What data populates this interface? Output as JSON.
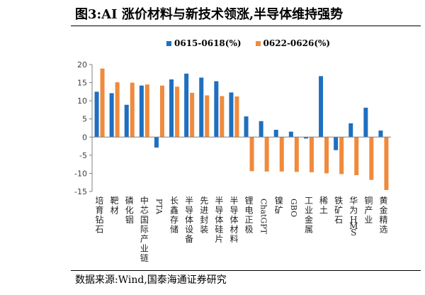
{
  "figure": {
    "title": "图3:AI 涨价材料与新技术领涨,半导体维持强势",
    "source": "数据来源:Wind,国泰海通证券研究"
  },
  "chart_data": {
    "type": "bar",
    "categories": [
      "培育钻石",
      "靶材",
      "磷化铟",
      "中芯国际产业链",
      "PTA",
      "长鑫存储",
      "半导体设备",
      "先进封装",
      "半导体硅片",
      "半导体材料",
      "锂电正极",
      "ChatGPT",
      "镍矿",
      "GBO",
      "工业金属",
      "稀土",
      "铁矿石",
      "华为HMS",
      "铜产业",
      "黄金精选"
    ],
    "series": [
      {
        "name": "0615-0618(%)",
        "color": "#1f6fbf",
        "values": [
          12.5,
          12.1,
          8.9,
          14.2,
          -2.9,
          15.9,
          17.5,
          16.4,
          15.4,
          12.3,
          5.7,
          4.4,
          2.0,
          1.5,
          -0.4,
          16.8,
          -3.6,
          3.8,
          8.1,
          1.8
        ]
      },
      {
        "name": "0622-0626(%)",
        "color": "#f08a3c",
        "values": [
          18.9,
          15.1,
          15.0,
          14.5,
          14.2,
          13.9,
          12.2,
          11.5,
          11.3,
          11.2,
          -9.4,
          -9.5,
          -9.5,
          -9.6,
          -9.7,
          -10.0,
          -10.2,
          -10.5,
          -11.8,
          -14.6
        ]
      }
    ],
    "ylim": [
      -15,
      20
    ],
    "yticks": [
      -15,
      -10,
      -5,
      0,
      5,
      10,
      15,
      20
    ],
    "legend_position": "top-center",
    "grid": false
  }
}
